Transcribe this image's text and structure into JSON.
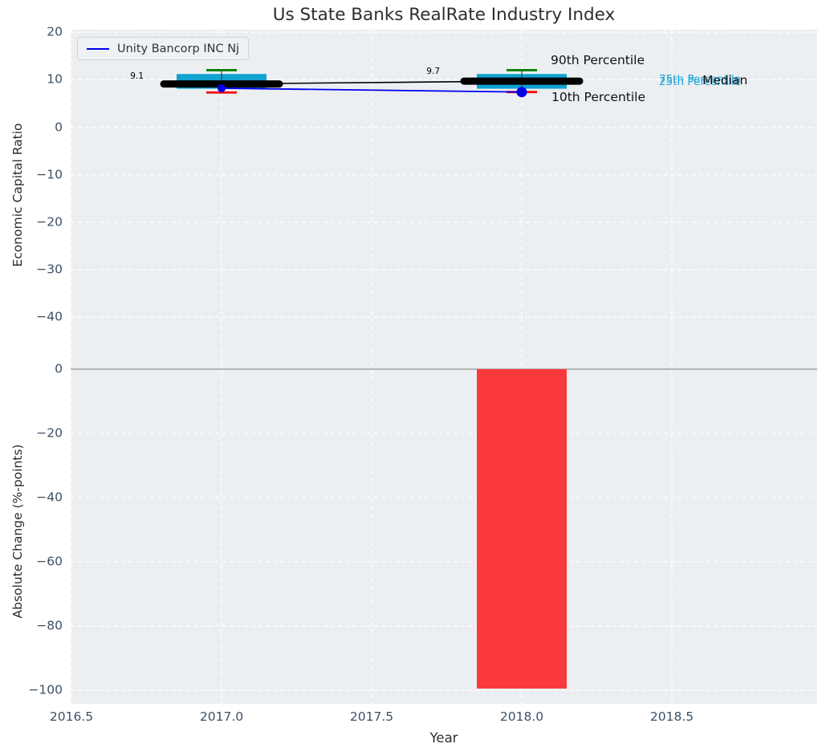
{
  "title": "Us State Banks RealRate Industry Index",
  "colors": {
    "plot_bg": "#ebeff1",
    "grid": "#ffffff",
    "box": "#0fa3d2",
    "bar": "#fa3a3a",
    "series": "#0000ee",
    "median": "#000000",
    "whisker": "#3a3a3a",
    "p90_cap": "#068006",
    "p10_cap": "#f40b0b",
    "zero_line": "#adadad",
    "tick_label": "#3d5166",
    "cyan_text": "#1ea7d8"
  },
  "xaxis": {
    "label": "Year",
    "xlim": [
      2016.5,
      2018.98
    ],
    "ticks": [
      {
        "v": 2016.5,
        "label": "2016.5"
      },
      {
        "v": 2017.0,
        "label": "2017.0"
      },
      {
        "v": 2017.5,
        "label": "2017.5"
      },
      {
        "v": 2018.0,
        "label": "2018.0"
      },
      {
        "v": 2018.5,
        "label": "2018.5"
      }
    ]
  },
  "chart_data": [
    {
      "type": "boxplot",
      "title": "Us State Banks RealRate Industry Index",
      "ylabel": "Economic Capital Ratio",
      "ylim": [
        -49,
        20.5
      ],
      "grid": true,
      "yticks": [
        {
          "v": 20,
          "label": "20"
        },
        {
          "v": 10,
          "label": "10"
        },
        {
          "v": 0,
          "label": "0"
        },
        {
          "v": -10,
          "label": "−10"
        },
        {
          "v": -20,
          "label": "−20"
        },
        {
          "v": -30,
          "label": "−30"
        },
        {
          "v": -40,
          "label": "−40"
        }
      ],
      "boxes": [
        {
          "x": 2017,
          "p10": 7.3,
          "p25": 8.1,
          "median": 9.1,
          "p75": 11.2,
          "p90": 12.0
        },
        {
          "x": 2018,
          "p10": 7.4,
          "p25": 8.1,
          "median": 9.7,
          "p75": 11.2,
          "p90": 12.0
        }
      ],
      "median_line": {
        "x": [
          2017,
          2018
        ],
        "y": [
          9.1,
          9.7
        ]
      },
      "median_labels": [
        "9.1",
        "9.7"
      ],
      "series": [
        {
          "name": "Unity Bancorp INC Nj",
          "x": [
            2017,
            2018
          ],
          "y": [
            8.2,
            7.4
          ]
        }
      ],
      "annotations": {
        "p90": "90th Percentile",
        "p10": "10th Percentile",
        "p75": "75th Percentile",
        "p25": "25th Percentile",
        "median": "Median"
      },
      "legend_position": "upper left"
    },
    {
      "type": "bar",
      "ylabel": "Absolute Change (%-points)",
      "ylim": [
        -104,
        3
      ],
      "grid": true,
      "yticks": [
        {
          "v": 0,
          "label": "0"
        },
        {
          "v": -20,
          "label": "−20"
        },
        {
          "v": -40,
          "label": "−40"
        },
        {
          "v": -60,
          "label": "−60"
        },
        {
          "v": -80,
          "label": "−80"
        },
        {
          "v": -100,
          "label": "−100"
        }
      ],
      "bars": [
        {
          "x": 2018,
          "value": -99.5
        }
      ]
    }
  ]
}
